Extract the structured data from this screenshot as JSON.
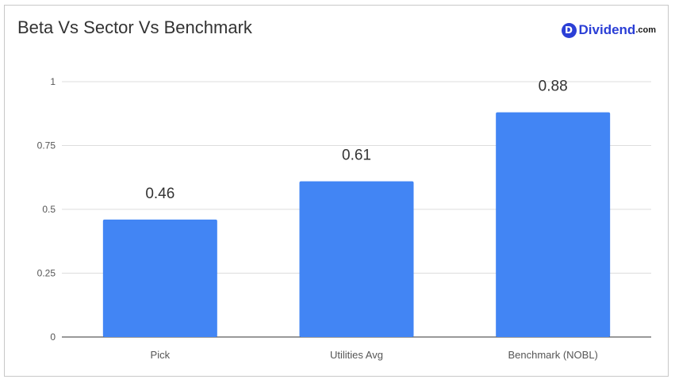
{
  "brand": {
    "badge": "D",
    "name": "Dividend",
    "domain": ".com",
    "color": "#2b3fd6"
  },
  "chart_data": {
    "type": "bar",
    "title": "Beta Vs Sector Vs Benchmark",
    "xlabel": "",
    "ylabel": "",
    "categories": [
      "Pick",
      "Utilities Avg",
      "Benchmark (NOBL)"
    ],
    "values": [
      0.46,
      0.61,
      0.88
    ],
    "data_labels": [
      "0.46",
      "0.61",
      "0.88"
    ],
    "ylim": [
      0,
      1
    ],
    "yticks": [
      0,
      0.25,
      0.5,
      0.75,
      1
    ],
    "ytick_labels": [
      "0",
      "0.25",
      "0.5",
      "0.75",
      "1"
    ],
    "grid": true,
    "legend": "none",
    "bar_color": "#4285f4"
  }
}
